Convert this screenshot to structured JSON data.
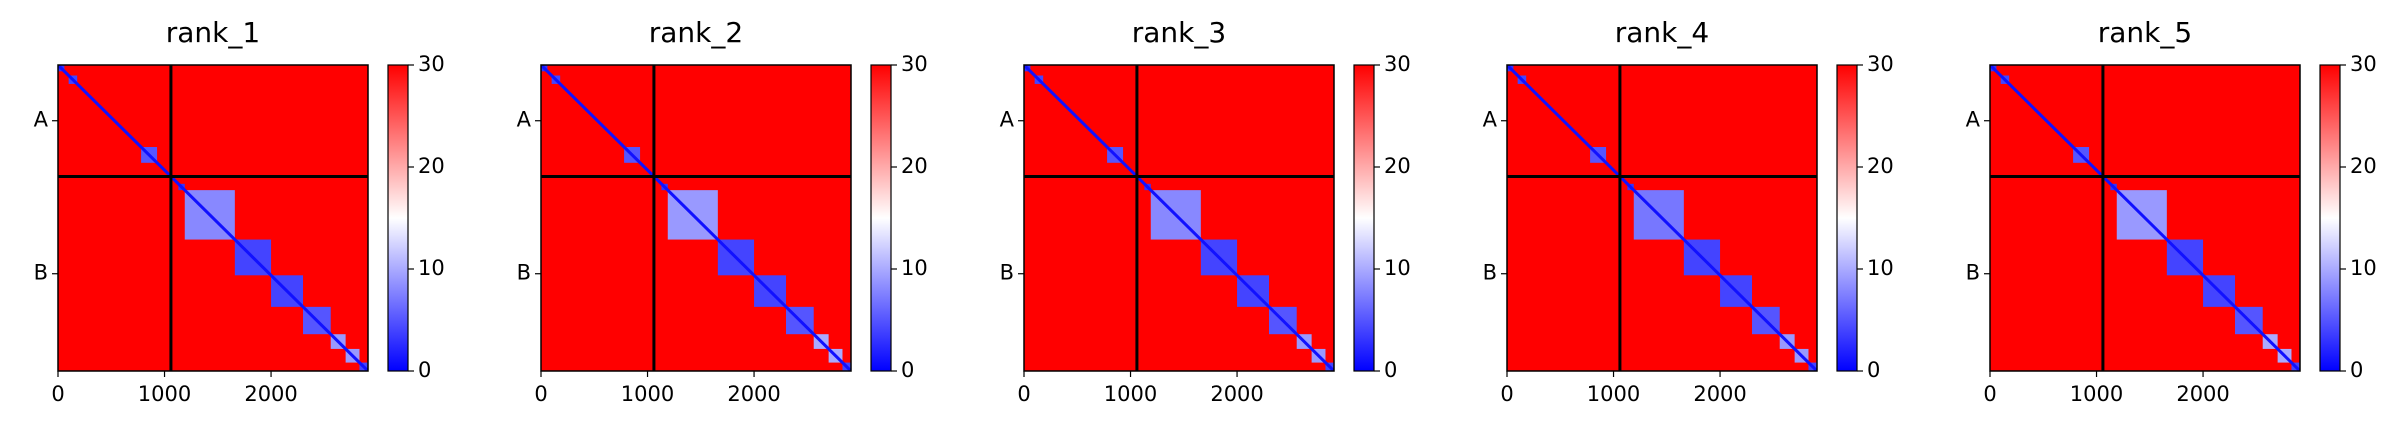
{
  "chart_data": [
    {
      "type": "heatmap",
      "title": "rank_1",
      "xlim": [
        0,
        2910
      ],
      "ylim": [
        2910,
        0
      ],
      "xticks": [
        0,
        1000,
        2000
      ],
      "yticks": [
        {
          "value": 530,
          "label": "A"
        },
        {
          "value": 1985,
          "label": "B"
        }
      ],
      "boundaries": [
        1060
      ],
      "colormap": "bwr",
      "clim": [
        0,
        30
      ],
      "cticks": [
        0,
        10,
        20,
        30
      ],
      "background": 30,
      "diagonal": 1,
      "blocks": [
        {
          "start": 0,
          "end": 60,
          "value": 3
        },
        {
          "start": 100,
          "end": 180,
          "value": 4
        },
        {
          "start": 780,
          "end": 930,
          "value": 5
        },
        {
          "start": 1130,
          "end": 1190,
          "value": 3
        },
        {
          "start": 1190,
          "end": 1660,
          "value": 8
        },
        {
          "start": 1660,
          "end": 2000,
          "value": 4
        },
        {
          "start": 2000,
          "end": 2300,
          "value": 4
        },
        {
          "start": 2300,
          "end": 2560,
          "value": 5
        },
        {
          "start": 2560,
          "end": 2700,
          "value": 9
        },
        {
          "start": 2700,
          "end": 2830,
          "value": 9
        },
        {
          "start": 2830,
          "end": 2910,
          "value": 4
        }
      ]
    },
    {
      "type": "heatmap",
      "title": "rank_2",
      "xlim": [
        0,
        2910
      ],
      "ylim": [
        2910,
        0
      ],
      "xticks": [
        0,
        1000,
        2000
      ],
      "yticks": [
        {
          "value": 530,
          "label": "A"
        },
        {
          "value": 1985,
          "label": "B"
        }
      ],
      "boundaries": [
        1060
      ],
      "colormap": "bwr",
      "clim": [
        0,
        30
      ],
      "cticks": [
        0,
        10,
        20,
        30
      ],
      "background": 30,
      "diagonal": 1,
      "blocks": [
        {
          "start": 0,
          "end": 60,
          "value": 3
        },
        {
          "start": 100,
          "end": 180,
          "value": 4
        },
        {
          "start": 780,
          "end": 930,
          "value": 5
        },
        {
          "start": 1130,
          "end": 1190,
          "value": 3
        },
        {
          "start": 1190,
          "end": 1660,
          "value": 9
        },
        {
          "start": 1660,
          "end": 2000,
          "value": 4
        },
        {
          "start": 2000,
          "end": 2300,
          "value": 4
        },
        {
          "start": 2300,
          "end": 2560,
          "value": 5
        },
        {
          "start": 2560,
          "end": 2700,
          "value": 10
        },
        {
          "start": 2700,
          "end": 2830,
          "value": 10
        },
        {
          "start": 2830,
          "end": 2910,
          "value": 4
        }
      ]
    },
    {
      "type": "heatmap",
      "title": "rank_3",
      "xlim": [
        0,
        2910
      ],
      "ylim": [
        2910,
        0
      ],
      "xticks": [
        0,
        1000,
        2000
      ],
      "yticks": [
        {
          "value": 530,
          "label": "A"
        },
        {
          "value": 1985,
          "label": "B"
        }
      ],
      "boundaries": [
        1060
      ],
      "colormap": "bwr",
      "clim": [
        0,
        30
      ],
      "cticks": [
        0,
        10,
        20,
        30
      ],
      "background": 30,
      "diagonal": 1,
      "blocks": [
        {
          "start": 0,
          "end": 60,
          "value": 3
        },
        {
          "start": 100,
          "end": 180,
          "value": 4
        },
        {
          "start": 780,
          "end": 930,
          "value": 5
        },
        {
          "start": 1130,
          "end": 1190,
          "value": 3
        },
        {
          "start": 1190,
          "end": 1660,
          "value": 8
        },
        {
          "start": 1660,
          "end": 2000,
          "value": 4
        },
        {
          "start": 2000,
          "end": 2300,
          "value": 4
        },
        {
          "start": 2300,
          "end": 2560,
          "value": 5
        },
        {
          "start": 2560,
          "end": 2700,
          "value": 9
        },
        {
          "start": 2700,
          "end": 2830,
          "value": 9
        },
        {
          "start": 2830,
          "end": 2910,
          "value": 4
        }
      ]
    },
    {
      "type": "heatmap",
      "title": "rank_4",
      "xlim": [
        0,
        2910
      ],
      "ylim": [
        2910,
        0
      ],
      "xticks": [
        0,
        1000,
        2000
      ],
      "yticks": [
        {
          "value": 530,
          "label": "A"
        },
        {
          "value": 1985,
          "label": "B"
        }
      ],
      "boundaries": [
        1060
      ],
      "colormap": "bwr",
      "clim": [
        0,
        30
      ],
      "cticks": [
        0,
        10,
        20,
        30
      ],
      "background": 30,
      "diagonal": 1,
      "blocks": [
        {
          "start": 0,
          "end": 60,
          "value": 3
        },
        {
          "start": 100,
          "end": 180,
          "value": 4
        },
        {
          "start": 780,
          "end": 930,
          "value": 5
        },
        {
          "start": 1130,
          "end": 1190,
          "value": 3
        },
        {
          "start": 1190,
          "end": 1660,
          "value": 7
        },
        {
          "start": 1660,
          "end": 2000,
          "value": 4
        },
        {
          "start": 2000,
          "end": 2300,
          "value": 4
        },
        {
          "start": 2300,
          "end": 2560,
          "value": 5
        },
        {
          "start": 2560,
          "end": 2700,
          "value": 9
        },
        {
          "start": 2700,
          "end": 2830,
          "value": 9
        },
        {
          "start": 2830,
          "end": 2910,
          "value": 4
        }
      ]
    },
    {
      "type": "heatmap",
      "title": "rank_5",
      "xlim": [
        0,
        2910
      ],
      "ylim": [
        2910,
        0
      ],
      "xticks": [
        0,
        1000,
        2000
      ],
      "yticks": [
        {
          "value": 530,
          "label": "A"
        },
        {
          "value": 1985,
          "label": "B"
        }
      ],
      "boundaries": [
        1060
      ],
      "colormap": "bwr",
      "clim": [
        0,
        30
      ],
      "cticks": [
        0,
        10,
        20,
        30
      ],
      "background": 30,
      "diagonal": 1,
      "blocks": [
        {
          "start": 0,
          "end": 60,
          "value": 3
        },
        {
          "start": 100,
          "end": 180,
          "value": 4
        },
        {
          "start": 780,
          "end": 930,
          "value": 5
        },
        {
          "start": 1130,
          "end": 1190,
          "value": 3
        },
        {
          "start": 1190,
          "end": 1660,
          "value": 9
        },
        {
          "start": 1660,
          "end": 2000,
          "value": 4
        },
        {
          "start": 2000,
          "end": 2300,
          "value": 4
        },
        {
          "start": 2300,
          "end": 2560,
          "value": 5
        },
        {
          "start": 2560,
          "end": 2700,
          "value": 10
        },
        {
          "start": 2700,
          "end": 2830,
          "value": 10
        },
        {
          "start": 2830,
          "end": 2910,
          "value": 4
        }
      ]
    }
  ]
}
